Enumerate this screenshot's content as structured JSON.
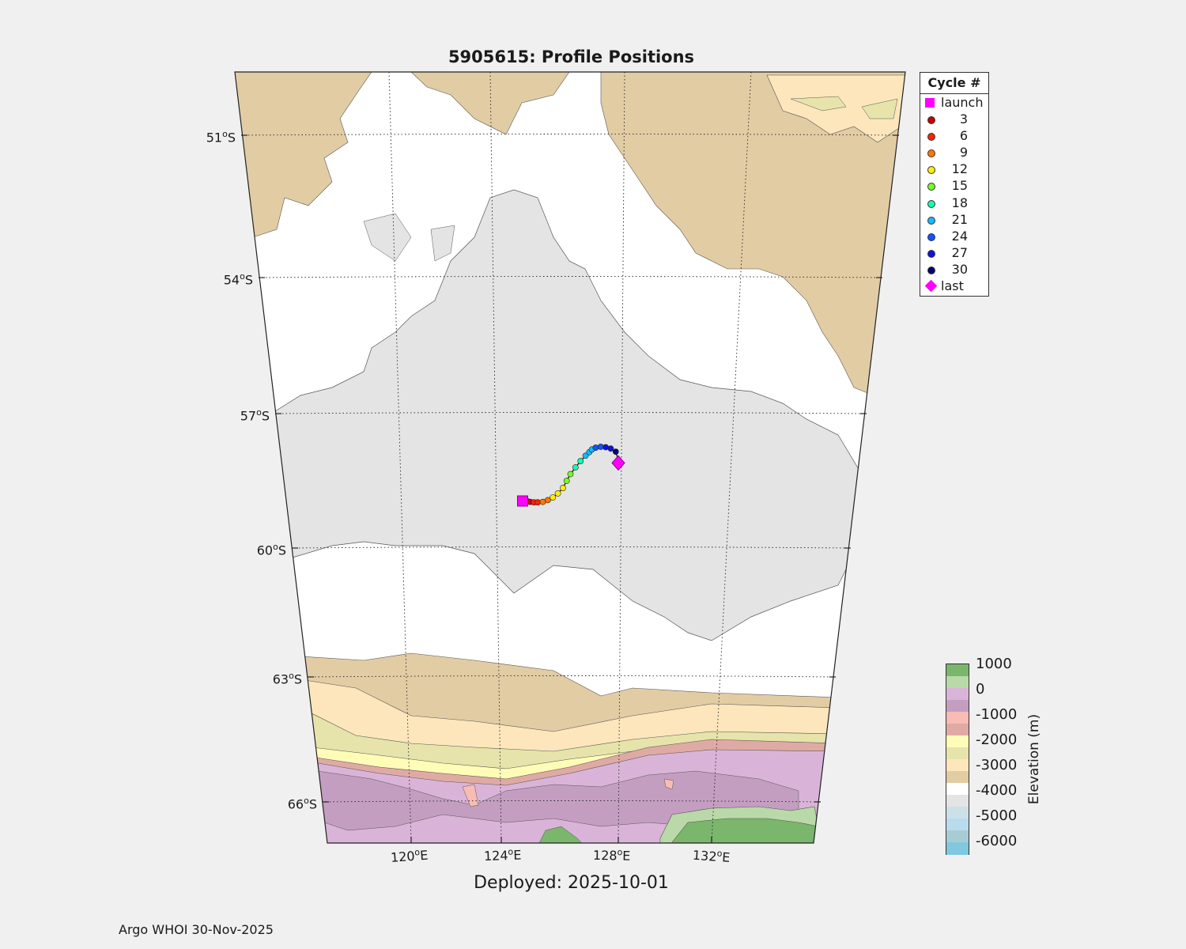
{
  "title": "5905615: Profile Positions",
  "deployed_label": "Deployed: 2025-10-01",
  "footer": "Argo WHOI 30-Nov-2025",
  "map": {
    "projection": "conic",
    "lat_range": [
      -67.5,
      -49.5
    ],
    "lon_range": [
      116,
      137
    ],
    "lat_ticks": [
      "51",
      "54",
      "57",
      "60",
      "63",
      "66"
    ],
    "lat_hemisphere": "S",
    "lon_ticks": [
      "120",
      "124",
      "128",
      "132"
    ],
    "lon_hemisphere": "E",
    "grid": "dotted"
  },
  "legend": {
    "title": "Cycle #",
    "entries": [
      {
        "label": "launch",
        "color": "#ff00ff",
        "shape": "square"
      },
      {
        "label": "3",
        "color": "#cc0000",
        "shape": "dot"
      },
      {
        "label": "6",
        "color": "#ff2200",
        "shape": "dot"
      },
      {
        "label": "9",
        "color": "#ff7700",
        "shape": "dot"
      },
      {
        "label": "12",
        "color": "#ffee00",
        "shape": "dot"
      },
      {
        "label": "15",
        "color": "#77ff22",
        "shape": "dot"
      },
      {
        "label": "18",
        "color": "#11ffaa",
        "shape": "dot"
      },
      {
        "label": "21",
        "color": "#11bbff",
        "shape": "dot"
      },
      {
        "label": "24",
        "color": "#1155ff",
        "shape": "dot"
      },
      {
        "label": "27",
        "color": "#1111dd",
        "shape": "dot"
      },
      {
        "label": "30",
        "color": "#000077",
        "shape": "dot"
      },
      {
        "label": "last",
        "color": "#ff00ff",
        "shape": "diamond"
      }
    ]
  },
  "colorbar": {
    "label": "Elevation (m)",
    "ticks": [
      "1000",
      "0",
      "-1000",
      "-2000",
      "-3000",
      "-4000",
      "-5000",
      "-6000"
    ],
    "colors": [
      "#7ab66c",
      "#b9d9a8",
      "#dab4d8",
      "#c49ec0",
      "#f8bcb4",
      "#e0aaa4",
      "#fffcb8",
      "#e6e4aa",
      "#fde6bc",
      "#e2cca4",
      "#ffffff",
      "#e4e4e4",
      "#cce0e8",
      "#b8dcec",
      "#a8ccd4",
      "#80c8e0"
    ]
  },
  "chart_data": {
    "type": "scatter",
    "title": "5905615: Profile Positions",
    "xlabel": "",
    "ylabel": "",
    "launch": {
      "lon": 124.4,
      "lat": -58.95
    },
    "last": {
      "lon": 128.2,
      "lat": -58.1
    },
    "track": [
      {
        "cycle": 1,
        "lon": 124.5,
        "lat": -58.95
      },
      {
        "cycle": 2,
        "lon": 124.6,
        "lat": -58.96
      },
      {
        "cycle": 3,
        "lon": 124.7,
        "lat": -58.97
      },
      {
        "cycle": 4,
        "lon": 124.85,
        "lat": -58.98
      },
      {
        "cycle": 5,
        "lon": 125.0,
        "lat": -58.98
      },
      {
        "cycle": 6,
        "lon": 125.2,
        "lat": -58.97
      },
      {
        "cycle": 7,
        "lon": 125.4,
        "lat": -58.93
      },
      {
        "cycle": 8,
        "lon": 125.6,
        "lat": -58.87
      },
      {
        "cycle": 9,
        "lon": 125.8,
        "lat": -58.78
      },
      {
        "cycle": 10,
        "lon": 126.0,
        "lat": -58.66
      },
      {
        "cycle": 11,
        "lon": 126.15,
        "lat": -58.5
      },
      {
        "cycle": 12,
        "lon": 126.3,
        "lat": -58.35
      },
      {
        "cycle": 13,
        "lon": 126.5,
        "lat": -58.2
      },
      {
        "cycle": 14,
        "lon": 126.7,
        "lat": -58.06
      },
      {
        "cycle": 15,
        "lon": 126.9,
        "lat": -57.94
      },
      {
        "cycle": 16,
        "lon": 127.05,
        "lat": -57.86
      },
      {
        "cycle": 17,
        "lon": 127.15,
        "lat": -57.8
      },
      {
        "cycle": 18,
        "lon": 127.3,
        "lat": -57.76
      },
      {
        "cycle": 19,
        "lon": 127.5,
        "lat": -57.74
      },
      {
        "cycle": 20,
        "lon": 127.7,
        "lat": -57.75
      },
      {
        "cycle": 21,
        "lon": 127.9,
        "lat": -57.78
      },
      {
        "cycle": 22,
        "lon": 128.1,
        "lat": -57.85
      },
      {
        "cycle": 23,
        "lon": 128.2,
        "lat": -58.05
      }
    ]
  }
}
